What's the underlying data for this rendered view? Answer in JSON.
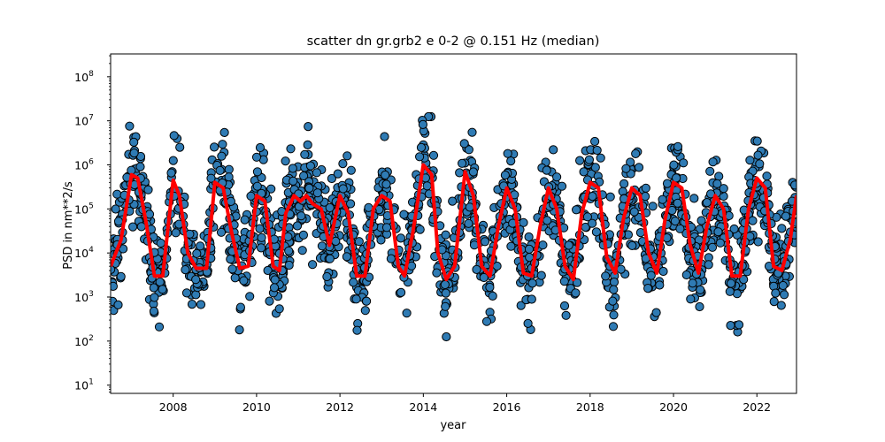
{
  "chart_data": {
    "type": "scatter",
    "title": "scatter dn gr.grb2 e 0-2 @ 0.151 Hz (median)",
    "xlabel": "year",
    "ylabel": "PSD in nm**2/s",
    "xlim": [
      2006.5,
      2022.95
    ],
    "ylim": [
      6.5,
      330000000
    ],
    "yscale": "log",
    "x_ticks": [
      "2008",
      "2010",
      "2012",
      "2014",
      "2016",
      "2018",
      "2020",
      "2022"
    ],
    "y_ticks": [
      {
        "base": "10",
        "exp": "1"
      },
      {
        "base": "10",
        "exp": "2"
      },
      {
        "base": "10",
        "exp": "3"
      },
      {
        "base": "10",
        "exp": "4"
      },
      {
        "base": "10",
        "exp": "5"
      },
      {
        "base": "10",
        "exp": "6"
      },
      {
        "base": "10",
        "exp": "7"
      },
      {
        "base": "10",
        "exp": "8"
      }
    ],
    "grid": false,
    "legend": "none",
    "colors": {
      "scatter_fill": "#2f7bb4",
      "scatter_edge": "#000000",
      "median_line": "#ff0000"
    },
    "median_line": {
      "x": [
        2006.5,
        2006.75,
        2007.0,
        2007.15,
        2007.35,
        2007.55,
        2007.75,
        2008.0,
        2008.15,
        2008.35,
        2008.55,
        2008.8,
        2009.0,
        2009.2,
        2009.4,
        2009.6,
        2009.8,
        2010.0,
        2010.2,
        2010.4,
        2010.55,
        2010.7,
        2010.9,
        2011.05,
        2011.2,
        2011.35,
        2011.55,
        2011.75,
        2012.0,
        2012.2,
        2012.4,
        2012.6,
        2012.8,
        2013.0,
        2013.2,
        2013.4,
        2013.55,
        2013.75,
        2014.0,
        2014.2,
        2014.35,
        2014.55,
        2014.75,
        2015.0,
        2015.2,
        2015.4,
        2015.6,
        2015.8,
        2016.0,
        2016.2,
        2016.4,
        2016.6,
        2016.8,
        2017.0,
        2017.2,
        2017.4,
        2017.6,
        2017.8,
        2018.0,
        2018.2,
        2018.4,
        2018.6,
        2018.8,
        2019.0,
        2019.2,
        2019.4,
        2019.6,
        2019.8,
        2020.0,
        2020.2,
        2020.4,
        2020.6,
        2020.8,
        2021.0,
        2021.2,
        2021.4,
        2021.6,
        2021.8,
        2022.0,
        2022.2,
        2022.4,
        2022.6,
        2022.8,
        2022.95
      ],
      "y": [
        5000,
        20000,
        600000,
        500000,
        50000,
        3000,
        3000,
        450000,
        200000,
        10000,
        4500,
        4500,
        400000,
        300000,
        30000,
        4500,
        5000,
        200000,
        150000,
        5000,
        4000,
        80000,
        200000,
        150000,
        200000,
        130000,
        100000,
        15000,
        200000,
        80000,
        3000,
        3000,
        100000,
        200000,
        150000,
        5000,
        3000,
        30000,
        1000000,
        600000,
        10000,
        2500,
        5000,
        700000,
        200000,
        5000,
        3000,
        40000,
        300000,
        100000,
        3500,
        3000,
        40000,
        300000,
        100000,
        5000,
        2500,
        80000,
        400000,
        300000,
        8000,
        3500,
        60000,
        300000,
        200000,
        10000,
        3500,
        60000,
        400000,
        300000,
        15000,
        3500,
        40000,
        200000,
        100000,
        3000,
        3000,
        100000,
        500000,
        300000,
        5000,
        4000,
        20000,
        200000
      ]
    },
    "scatter_description_note": ""
  }
}
